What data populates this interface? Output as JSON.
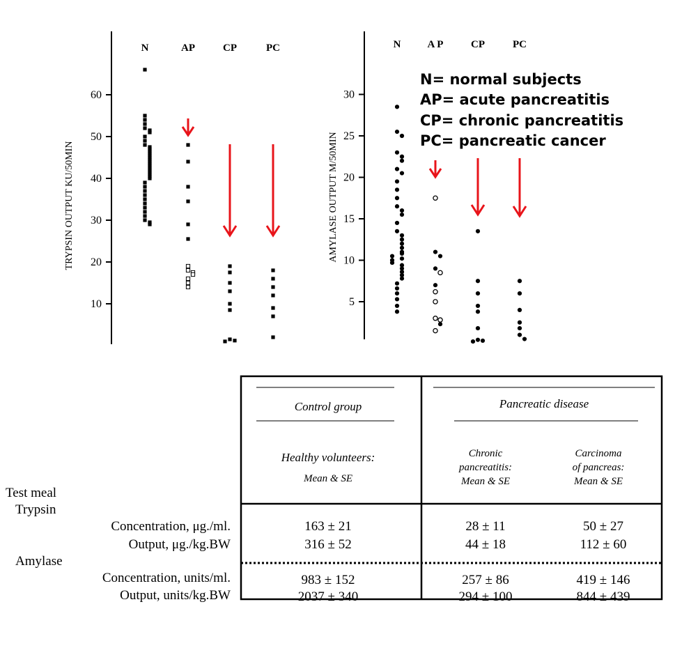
{
  "chart_data": [
    {
      "type": "scatter",
      "ylabel": "TRYPSIN OUTPUT KU/50MIN",
      "categories": [
        "N",
        "AP",
        "CP",
        "PC"
      ],
      "yticks": [
        10,
        20,
        30,
        40,
        50,
        60
      ],
      "ylim": [
        1,
        70
      ],
      "grid": false,
      "points": [
        {
          "cat": "N",
          "y": 66,
          "f": true
        },
        {
          "cat": "N",
          "y": 55,
          "f": true
        },
        {
          "cat": "N",
          "y": 54,
          "f": true
        },
        {
          "cat": "N",
          "y": 53,
          "f": true
        },
        {
          "cat": "N",
          "y": 52,
          "f": true
        },
        {
          "cat": "N",
          "y": 51.5,
          "f": true
        },
        {
          "cat": "N",
          "y": 51,
          "f": true
        },
        {
          "cat": "N",
          "y": 50,
          "f": true
        },
        {
          "cat": "N",
          "y": 49,
          "f": true
        },
        {
          "cat": "N",
          "y": 48,
          "f": true
        },
        {
          "cat": "N",
          "y": 47.5,
          "f": true
        },
        {
          "cat": "N",
          "y": 47,
          "f": true
        },
        {
          "cat": "N",
          "y": 46.5,
          "f": true
        },
        {
          "cat": "N",
          "y": 46,
          "f": true
        },
        {
          "cat": "N",
          "y": 45.5,
          "f": true
        },
        {
          "cat": "N",
          "y": 45,
          "f": true
        },
        {
          "cat": "N",
          "y": 44.5,
          "f": true
        },
        {
          "cat": "N",
          "y": 44,
          "f": true
        },
        {
          "cat": "N",
          "y": 43.5,
          "f": true
        },
        {
          "cat": "N",
          "y": 43,
          "f": true
        },
        {
          "cat": "N",
          "y": 42.5,
          "f": true
        },
        {
          "cat": "N",
          "y": 42,
          "f": true
        },
        {
          "cat": "N",
          "y": 41.5,
          "f": true
        },
        {
          "cat": "N",
          "y": 41,
          "f": true
        },
        {
          "cat": "N",
          "y": 40.5,
          "f": true
        },
        {
          "cat": "N",
          "y": 40,
          "f": true
        },
        {
          "cat": "N",
          "y": 39,
          "f": true
        },
        {
          "cat": "N",
          "y": 38,
          "f": true
        },
        {
          "cat": "N",
          "y": 37,
          "f": true
        },
        {
          "cat": "N",
          "y": 36,
          "f": true
        },
        {
          "cat": "N",
          "y": 35,
          "f": true
        },
        {
          "cat": "N",
          "y": 34,
          "f": true
        },
        {
          "cat": "N",
          "y": 33,
          "f": true
        },
        {
          "cat": "N",
          "y": 32,
          "f": true
        },
        {
          "cat": "N",
          "y": 31,
          "f": true
        },
        {
          "cat": "N",
          "y": 30,
          "f": true
        },
        {
          "cat": "N",
          "y": 29.5,
          "f": true
        },
        {
          "cat": "N",
          "y": 29,
          "f": true
        },
        {
          "cat": "AP",
          "y": 48,
          "f": true
        },
        {
          "cat": "AP",
          "y": 44,
          "f": true
        },
        {
          "cat": "AP",
          "y": 38,
          "f": true
        },
        {
          "cat": "AP",
          "y": 34.5,
          "f": true
        },
        {
          "cat": "AP",
          "y": 29,
          "f": true
        },
        {
          "cat": "AP",
          "y": 25.5,
          "f": true
        },
        {
          "cat": "AP",
          "y": 19,
          "f": false
        },
        {
          "cat": "AP",
          "y": 18,
          "f": false
        },
        {
          "cat": "AP",
          "y": 17.5,
          "f": false
        },
        {
          "cat": "AP",
          "y": 17,
          "f": false
        },
        {
          "cat": "AP",
          "y": 16,
          "f": false
        },
        {
          "cat": "AP",
          "y": 15,
          "f": false
        },
        {
          "cat": "AP",
          "y": 14,
          "f": false
        },
        {
          "cat": "CP",
          "y": 19,
          "f": true
        },
        {
          "cat": "CP",
          "y": 17.5,
          "f": true
        },
        {
          "cat": "CP",
          "y": 15,
          "f": true
        },
        {
          "cat": "CP",
          "y": 13,
          "f": true
        },
        {
          "cat": "CP",
          "y": 10,
          "f": true
        },
        {
          "cat": "CP",
          "y": 8.5,
          "f": true
        },
        {
          "cat": "CP",
          "y": 1.5,
          "f": true
        },
        {
          "cat": "CP",
          "y": 1.2,
          "f": true
        },
        {
          "cat": "CP",
          "y": 1,
          "f": true
        },
        {
          "cat": "PC",
          "y": 18,
          "f": true
        },
        {
          "cat": "PC",
          "y": 16,
          "f": true
        },
        {
          "cat": "PC",
          "y": 14,
          "f": true
        },
        {
          "cat": "PC",
          "y": 12,
          "f": true
        },
        {
          "cat": "PC",
          "y": 9,
          "f": true
        },
        {
          "cat": "PC",
          "y": 7,
          "f": true
        },
        {
          "cat": "PC",
          "y": 2,
          "f": true
        }
      ]
    },
    {
      "type": "scatter",
      "ylabel": "AMYLASE OUTPUT M/50MIN",
      "categories": [
        "N",
        "A P",
        "CP",
        "PC"
      ],
      "yticks": [
        5,
        10,
        15,
        20,
        25,
        30
      ],
      "ylim": [
        0,
        34
      ],
      "grid": false,
      "points": [
        {
          "cat": "N",
          "y": 28.5,
          "f": true
        },
        {
          "cat": "N",
          "y": 25.5,
          "f": true
        },
        {
          "cat": "N",
          "y": 25,
          "f": true
        },
        {
          "cat": "N",
          "y": 23,
          "f": true
        },
        {
          "cat": "N",
          "y": 22.5,
          "f": true
        },
        {
          "cat": "N",
          "y": 22,
          "f": true
        },
        {
          "cat": "N",
          "y": 21,
          "f": true
        },
        {
          "cat": "N",
          "y": 20.5,
          "f": true
        },
        {
          "cat": "N",
          "y": 19.5,
          "f": true
        },
        {
          "cat": "N",
          "y": 18.5,
          "f": true
        },
        {
          "cat": "N",
          "y": 17.5,
          "f": true
        },
        {
          "cat": "N",
          "y": 16.5,
          "f": true
        },
        {
          "cat": "N",
          "y": 16,
          "f": true
        },
        {
          "cat": "N",
          "y": 15.5,
          "f": true
        },
        {
          "cat": "N",
          "y": 14.5,
          "f": true
        },
        {
          "cat": "N",
          "y": 13.5,
          "f": true
        },
        {
          "cat": "N",
          "y": 13,
          "f": true
        },
        {
          "cat": "N",
          "y": 12.5,
          "f": true
        },
        {
          "cat": "N",
          "y": 12,
          "f": true
        },
        {
          "cat": "N",
          "y": 11.5,
          "f": true
        },
        {
          "cat": "N",
          "y": 11,
          "f": true
        },
        {
          "cat": "N",
          "y": 10.8,
          "f": true
        },
        {
          "cat": "N",
          "y": 10.5,
          "f": true
        },
        {
          "cat": "N",
          "y": 10.2,
          "f": true
        },
        {
          "cat": "N",
          "y": 10,
          "f": true
        },
        {
          "cat": "N",
          "y": 9.7,
          "f": true
        },
        {
          "cat": "N",
          "y": 9.4,
          "f": true
        },
        {
          "cat": "N",
          "y": 9,
          "f": true
        },
        {
          "cat": "N",
          "y": 8.6,
          "f": true
        },
        {
          "cat": "N",
          "y": 8.2,
          "f": true
        },
        {
          "cat": "N",
          "y": 7.8,
          "f": true
        },
        {
          "cat": "N",
          "y": 7.2,
          "f": true
        },
        {
          "cat": "N",
          "y": 6.6,
          "f": true
        },
        {
          "cat": "N",
          "y": 6,
          "f": true
        },
        {
          "cat": "N",
          "y": 5.3,
          "f": true
        },
        {
          "cat": "N",
          "y": 4.5,
          "f": true
        },
        {
          "cat": "N",
          "y": 3.8,
          "f": true
        },
        {
          "cat": "A P",
          "y": 17.5,
          "f": false
        },
        {
          "cat": "A P",
          "y": 11,
          "f": true
        },
        {
          "cat": "A P",
          "y": 10.5,
          "f": true
        },
        {
          "cat": "A P",
          "y": 9,
          "f": true
        },
        {
          "cat": "A P",
          "y": 8.5,
          "f": false
        },
        {
          "cat": "A P",
          "y": 7,
          "f": true
        },
        {
          "cat": "A P",
          "y": 6.2,
          "f": false
        },
        {
          "cat": "A P",
          "y": 5,
          "f": false
        },
        {
          "cat": "A P",
          "y": 3,
          "f": false
        },
        {
          "cat": "A P",
          "y": 2.8,
          "f": false
        },
        {
          "cat": "A P",
          "y": 2.3,
          "f": true
        },
        {
          "cat": "A P",
          "y": 1.5,
          "f": false
        },
        {
          "cat": "CP",
          "y": 13.5,
          "f": true
        },
        {
          "cat": "CP",
          "y": 7.5,
          "f": true
        },
        {
          "cat": "CP",
          "y": 6,
          "f": true
        },
        {
          "cat": "CP",
          "y": 4.5,
          "f": true
        },
        {
          "cat": "CP",
          "y": 3.8,
          "f": true
        },
        {
          "cat": "CP",
          "y": 1.8,
          "f": true
        },
        {
          "cat": "CP",
          "y": 0.4,
          "f": true
        },
        {
          "cat": "CP",
          "y": 0.3,
          "f": true
        },
        {
          "cat": "CP",
          "y": 0.2,
          "f": true
        },
        {
          "cat": "PC",
          "y": 7.5,
          "f": true
        },
        {
          "cat": "PC",
          "y": 6,
          "f": true
        },
        {
          "cat": "PC",
          "y": 4,
          "f": true
        },
        {
          "cat": "PC",
          "y": 2.5,
          "f": true
        },
        {
          "cat": "PC",
          "y": 1.8,
          "f": true
        },
        {
          "cat": "PC",
          "y": 1,
          "f": true
        },
        {
          "cat": "PC",
          "y": 0.5,
          "f": true
        }
      ]
    }
  ],
  "legend": [
    "N= normal subjects",
    "AP= acute pancreatitis",
    "CP= chronic pancreatitis",
    "PC= pancreatic cancer"
  ],
  "colors": {
    "arrow": "#e8141a",
    "ink": "#000000"
  },
  "table": {
    "control_header": "Control group",
    "disease_header": "Pancreatic disease",
    "col_healthy": [
      "Healthy volunteers:",
      "Mean & SE"
    ],
    "col_chronic": [
      "Chronic",
      "pancreatitis:",
      "Mean & SE"
    ],
    "col_carcinoma": [
      "Carcinoma",
      "of pancreas:",
      "Mean & SE"
    ],
    "row_labels": [
      "Test meal",
      "Trypsin",
      "Concentration, μg./ml.",
      "Output, μg./kg.BW",
      "Amylase",
      "Concentration, units/ml.",
      "Output, units/kg.BW"
    ],
    "rows": [
      {
        "healthy": "163 ± 21",
        "chronic": "28 ± 11",
        "carcinoma": "50 ± 27"
      },
      {
        "healthy": "316 ± 52",
        "chronic": "44 ± 18",
        "carcinoma": "112 ± 60"
      },
      {
        "healthy": "983 ± 152",
        "chronic": "257 ± 86",
        "carcinoma": "419 ± 146"
      },
      {
        "healthy": "2037 ± 340",
        "chronic": "294 ± 100",
        "carcinoma": "844 ± 439"
      }
    ]
  }
}
